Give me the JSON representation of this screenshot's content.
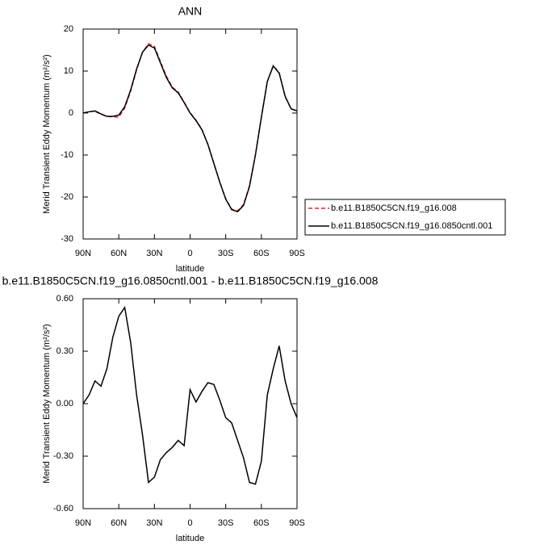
{
  "chart_data": [
    {
      "type": "line",
      "title": "ANN",
      "xlabel": "latitude",
      "ylabel": "Merid Transient Eddy Momentum (m²/s²)",
      "x": [
        90,
        85,
        80,
        75,
        70,
        65,
        60,
        55,
        50,
        45,
        40,
        35,
        30,
        25,
        20,
        15,
        10,
        5,
        0,
        -5,
        -10,
        -15,
        -20,
        -25,
        -30,
        -35,
        -40,
        -45,
        -50,
        -55,
        -60,
        -65,
        -70,
        -75,
        -80,
        -85,
        -90
      ],
      "series": [
        {
          "name": "b.e11.B1850C5CN.f19_g16.008",
          "color": "#d62728",
          "dash": true,
          "values": [
            0,
            0.3,
            0.4,
            -0.3,
            -0.8,
            -0.9,
            -1,
            1.2,
            5.2,
            10.3,
            14.5,
            16.5,
            15.9,
            12.3,
            8.8,
            6.2,
            5,
            2.6,
            0.1,
            -1.7,
            -3.9,
            -7.4,
            -11.9,
            -16.4,
            -20.4,
            -22.9,
            -23.3,
            -21.8,
            -17.3,
            -9.9,
            -1,
            7.5,
            11.3,
            9.6,
            3.9,
            1,
            0.6
          ]
        },
        {
          "name": "b.e11.B1850C5CN.f19_g16.0850cntl.001",
          "color": "#000000",
          "dash": false,
          "values": [
            0,
            0.3,
            0.5,
            -0.2,
            -0.8,
            -0.8,
            -0.5,
            1.5,
            5.5,
            10.5,
            14.5,
            16.2,
            15.5,
            12,
            8.5,
            6,
            4.8,
            2.5,
            0,
            -1.8,
            -4,
            -7.5,
            -12,
            -16.5,
            -20.5,
            -23,
            -23.5,
            -22,
            -17.5,
            -10,
            -1,
            7.5,
            11.2,
            9.5,
            4,
            1,
            0.5
          ]
        }
      ],
      "xlim": [
        90,
        -90
      ],
      "xticks": [
        {
          "value": 90,
          "label": "90N"
        },
        {
          "value": 60,
          "label": "60N"
        },
        {
          "value": 30,
          "label": "30N"
        },
        0,
        {
          "value": -30,
          "label": "30S"
        },
        {
          "value": -60,
          "label": "60S"
        },
        {
          "value": -90,
          "label": "90S"
        }
      ],
      "ylim": [
        -30,
        20
      ],
      "yticks": [
        -30,
        -20,
        -10,
        0,
        10,
        20
      ],
      "legend": "outside right"
    },
    {
      "type": "line",
      "title": "b.e11.B1850C5CN.f19_g16.0850cntl.001 - b.e11.B1850C5CN.f19_g16.008",
      "xlabel": "latitude",
      "ylabel": "Merid Transient Eddy Momentum (m²/s²)",
      "x": [
        90,
        85,
        80,
        75,
        70,
        65,
        60,
        55,
        50,
        45,
        40,
        35,
        30,
        25,
        20,
        15,
        10,
        5,
        0,
        -5,
        -10,
        -15,
        -20,
        -25,
        -30,
        -35,
        -40,
        -45,
        -50,
        -55,
        -60,
        -65,
        -70,
        -75,
        -80,
        -85,
        -90
      ],
      "series": [
        {
          "color": "#000000",
          "dash": false,
          "values": [
            0,
            0.05,
            0.13,
            0.1,
            0.2,
            0.38,
            0.5,
            0.55,
            0.35,
            0.05,
            -0.18,
            -0.45,
            -0.42,
            -0.32,
            -0.28,
            -0.25,
            -0.21,
            -0.24,
            0.08,
            0.01,
            0.07,
            0.12,
            0.11,
            0.02,
            -0.08,
            -0.11,
            -0.21,
            -0.31,
            -0.45,
            -0.46,
            -0.33,
            0.05,
            0.2,
            0.33,
            0.13,
            0,
            -0.08
          ]
        }
      ],
      "xlim": [
        90,
        -90
      ],
      "xticks": [
        {
          "value": 90,
          "label": "90N"
        },
        {
          "value": 60,
          "label": "60N"
        },
        {
          "value": 30,
          "label": "30N"
        },
        0,
        {
          "value": -30,
          "label": "30S"
        },
        {
          "value": -60,
          "label": "60S"
        },
        {
          "value": -90,
          "label": "90S"
        }
      ],
      "ylim": [
        -0.6,
        0.6
      ],
      "yticks": [
        {
          "value": -0.6,
          "label": "-0.60"
        },
        {
          "value": -0.3,
          "label": "-0.30"
        },
        {
          "value": 0,
          "label": "0.00"
        },
        {
          "value": 0.3,
          "label": "0.30"
        },
        {
          "value": 0.6,
          "label": "0.60"
        }
      ]
    }
  ]
}
